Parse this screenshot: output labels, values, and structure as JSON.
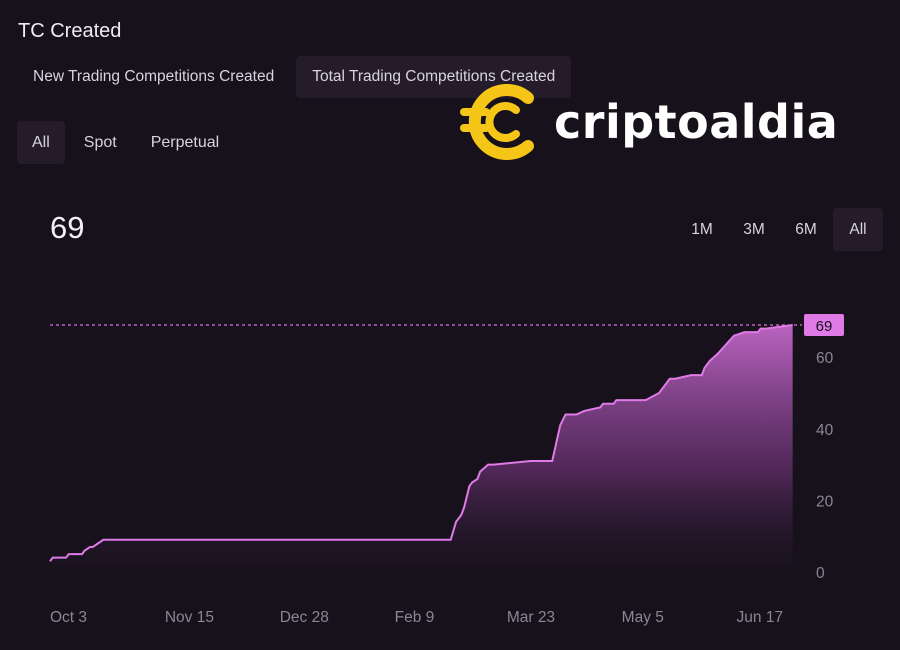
{
  "header": {
    "title": "TC Created"
  },
  "tabs": [
    {
      "label": "New Trading Competitions Created",
      "active": false
    },
    {
      "label": "Total Trading Competitions Created",
      "active": true
    }
  ],
  "filters": [
    {
      "label": "All",
      "active": true
    },
    {
      "label": "Spot",
      "active": false
    },
    {
      "label": "Perpetual",
      "active": false
    }
  ],
  "current_value": "69",
  "ranges": [
    {
      "label": "1M",
      "active": false
    },
    {
      "label": "3M",
      "active": false
    },
    {
      "label": "6M",
      "active": false
    },
    {
      "label": "All",
      "active": true
    }
  ],
  "watermark": {
    "text": "criptoaldia",
    "icon": "coin-c-icon",
    "color": "#f5c518"
  },
  "colors": {
    "background": "#16111b",
    "line": "#e07ae6",
    "accent": "#d873de"
  },
  "chart_data": {
    "type": "area",
    "x_ticks": [
      "Oct 3",
      "Nov 15",
      "Dec 28",
      "Feb 9",
      "Mar 23",
      "May 5",
      "Jun 17"
    ],
    "y_ticks": [
      0,
      20,
      40,
      60
    ],
    "ylim": [
      0,
      70
    ],
    "xlim_days": [
      0,
      280
    ],
    "last_value_label": "69",
    "reference_line": 69,
    "x": [
      0,
      1,
      6,
      7,
      12,
      13,
      15,
      16,
      18,
      20,
      22,
      150,
      152,
      154,
      155,
      157,
      158,
      160,
      161,
      164,
      166,
      180,
      181,
      183,
      184,
      187,
      188,
      191,
      193,
      197,
      200,
      206,
      207,
      211,
      212,
      215,
      217,
      223,
      228,
      230,
      232,
      234,
      240,
      242,
      244,
      245,
      247,
      250,
      256,
      260,
      265,
      266,
      268,
      278
    ],
    "values": [
      3,
      4,
      4,
      5,
      5,
      6,
      7,
      7,
      8,
      9,
      9,
      9,
      14,
      16,
      18,
      24,
      25,
      26,
      28,
      30,
      30,
      31,
      31,
      31,
      31,
      31,
      31,
      41,
      44,
      44,
      45,
      46,
      47,
      47,
      48,
      48,
      48,
      48,
      50,
      52,
      54,
      54,
      55,
      55,
      55,
      57,
      59,
      61,
      66,
      67,
      67,
      68,
      68,
      69
    ]
  }
}
